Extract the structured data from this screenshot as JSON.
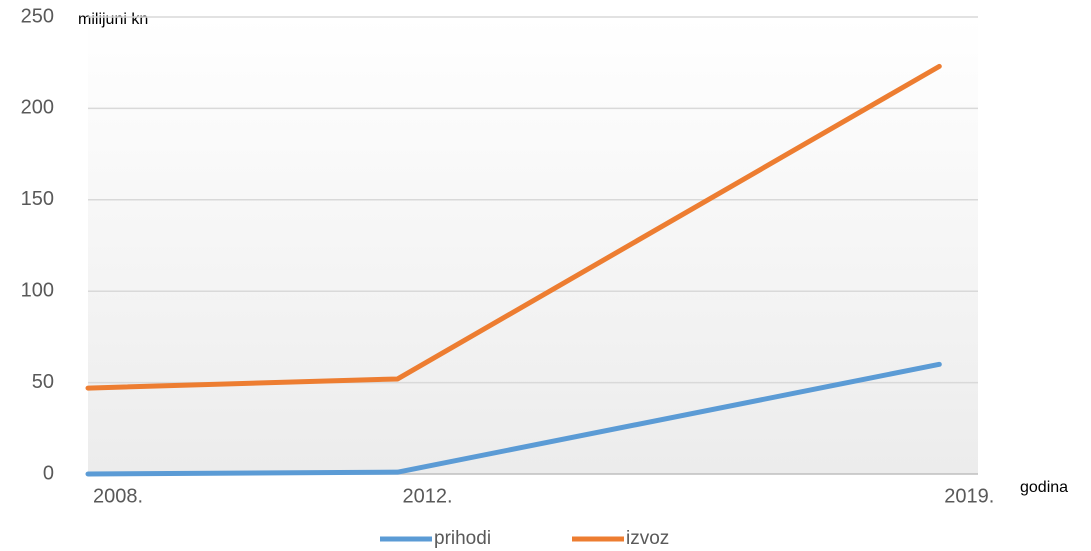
{
  "chart_data": {
    "type": "line",
    "y_label": "milijuni kn",
    "x_label": "godina",
    "x": [
      2008,
      2012,
      2019
    ],
    "xlim": [
      2008,
      2019.5
    ],
    "xticks": [
      {
        "value": 2008,
        "label": "2008."
      },
      {
        "value": 2012,
        "label": "2012."
      },
      {
        "value": 2019,
        "label": "2019."
      }
    ],
    "series": [
      {
        "name": "prihodi",
        "color": "#5b9bd5",
        "values": [
          0,
          1,
          60
        ]
      },
      {
        "name": "izvoz",
        "color": "#ed7d31",
        "values": [
          47,
          52,
          223
        ]
      }
    ],
    "ylim": [
      0,
      250
    ],
    "yticks": [
      0,
      50,
      100,
      150,
      200,
      250
    ],
    "grid": true,
    "legend": "bottom"
  }
}
